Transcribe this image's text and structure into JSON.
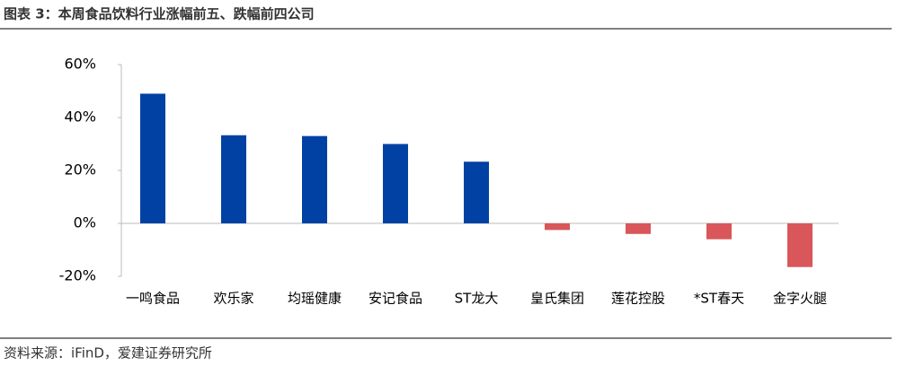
{
  "chart_data": {
    "type": "bar",
    "title": "图表 3：本周食品饮料行业涨幅前五、跌幅前四公司",
    "categories": [
      "一鸣食品",
      "欢乐家",
      "均瑶健康",
      "安记食品",
      "ST龙大",
      "皇氏集团",
      "莲花控股",
      "*ST春天",
      "金字火腿"
    ],
    "values": [
      49,
      33.3,
      33,
      30,
      23.3,
      -2.5,
      -4,
      -6,
      -16.5
    ],
    "positive_color": "#0041a3",
    "negative_color": "#d9565a",
    "ylim": [
      -20,
      60
    ],
    "yticks": [
      {
        "value": -20,
        "label": "-20%"
      },
      {
        "value": 0,
        "label": "0%"
      },
      {
        "value": 20,
        "label": "20%"
      },
      {
        "value": 40,
        "label": "40%"
      },
      {
        "value": 60,
        "label": "60%"
      }
    ],
    "grid": false,
    "source": "资料来源：iFinD，爱建证券研究所"
  }
}
